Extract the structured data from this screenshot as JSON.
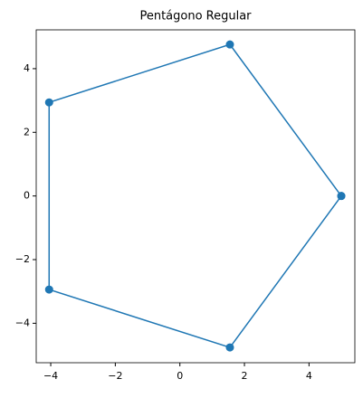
{
  "chart_data": {
    "type": "line",
    "title": "Pentágono Regular",
    "x": [
      5,
      1.55,
      -4.05,
      -4.05,
      1.55,
      5
    ],
    "values": [
      0,
      4.76,
      2.94,
      -2.94,
      -4.76,
      0
    ],
    "color": "#1f77b4",
    "markers": true,
    "xlim": [
      -4.45,
      5.42
    ],
    "ylim": [
      -5.24,
      5.22
    ],
    "xticks": [
      {
        "value": -4,
        "label": "−4"
      },
      {
        "value": -2,
        "label": "−2"
      },
      0,
      2,
      4
    ],
    "yticks": [
      {
        "value": -4,
        "label": "−4"
      },
      {
        "value": -2,
        "label": "−2"
      },
      0,
      2,
      4
    ],
    "grid": false
  }
}
